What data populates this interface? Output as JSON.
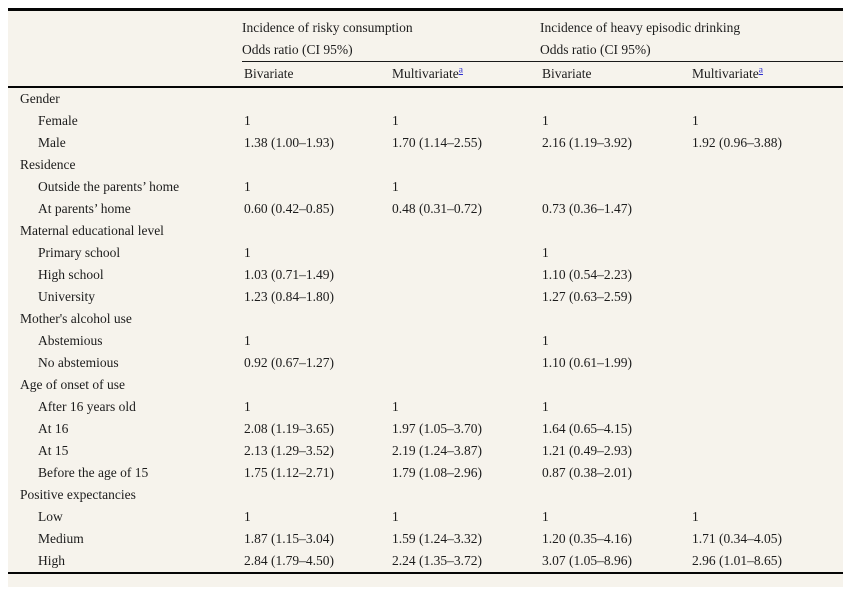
{
  "table": {
    "groups": [
      {
        "line1": "Incidence of risky consumption",
        "line2": "Odds ratio (CI 95%)"
      },
      {
        "line1": "Incidence of heavy episodic drinking",
        "line2": "Odds ratio (CI 95%)"
      }
    ],
    "sub_headers": {
      "bivariate_1": "Bivariate",
      "multivariate_1": "Multivariate",
      "bivariate_2": "Bivariate",
      "multivariate_2": "Multivariate"
    },
    "footnote_marker": "a",
    "sections": [
      {
        "label": "Gender",
        "rows": [
          {
            "label": "Female",
            "values": [
              "1",
              "1",
              "1",
              "1"
            ]
          },
          {
            "label": "Male",
            "values": [
              "1.38 (1.00–1.93)",
              "1.70 (1.14–2.55)",
              "2.16 (1.19–3.92)",
              "1.92 (0.96–3.88)"
            ]
          }
        ]
      },
      {
        "label": "Residence",
        "rows": [
          {
            "label": "Outside the parents’ home",
            "values": [
              "1",
              "1",
              "",
              ""
            ]
          },
          {
            "label": "At parents’ home",
            "values": [
              "0.60 (0.42–0.85)",
              "0.48 (0.31–0.72)",
              "0.73 (0.36–1.47)",
              ""
            ]
          }
        ]
      },
      {
        "label": "Maternal educational level",
        "rows": [
          {
            "label": "Primary school",
            "values": [
              "1",
              "",
              "1",
              ""
            ]
          },
          {
            "label": "High school",
            "values": [
              "1.03 (0.71–1.49)",
              "",
              "1.10 (0.54–2.23)",
              ""
            ]
          },
          {
            "label": "University",
            "values": [
              "1.23 (0.84–1.80)",
              "",
              "1.27 (0.63–2.59)",
              ""
            ]
          }
        ]
      },
      {
        "label": "Mother's alcohol use",
        "rows": [
          {
            "label": "Abstemious",
            "values": [
              "1",
              "",
              "1",
              ""
            ]
          },
          {
            "label": "No abstemious",
            "values": [
              "0.92 (0.67–1.27)",
              "",
              "1.10 (0.61–1.99)",
              ""
            ]
          }
        ]
      },
      {
        "label": "Age of onset of use",
        "rows": [
          {
            "label": "After 16 years old",
            "values": [
              "1",
              "1",
              "1",
              ""
            ]
          },
          {
            "label": "At 16",
            "values": [
              "2.08 (1.19–3.65)",
              "1.97 (1.05–3.70)",
              "1.64 (0.65–4.15)",
              ""
            ]
          },
          {
            "label": "At 15",
            "values": [
              "2.13 (1.29–3.52)",
              "2.19 (1.24–3.87)",
              "1.21 (0.49–2.93)",
              ""
            ]
          },
          {
            "label": "Before the age of 15",
            "values": [
              "1.75 (1.12–2.71)",
              "1.79 (1.08–2.96)",
              "0.87 (0.38–2.01)",
              ""
            ]
          }
        ]
      },
      {
        "label": "Positive expectancies",
        "rows": [
          {
            "label": "Low",
            "values": [
              "1",
              "1",
              "1",
              "1"
            ]
          },
          {
            "label": "Medium",
            "values": [
              "1.87 (1.15–3.04)",
              "1.59 (1.24–3.32)",
              "1.20 (0.35–4.16)",
              "1.71 (0.34–4.05)"
            ]
          },
          {
            "label": "High",
            "values": [
              "2.84 (1.79–4.50)",
              "2.24 (1.35–3.72)",
              "3.07 (1.05–8.96)",
              "2.96 (1.01–8.65)"
            ]
          }
        ]
      }
    ],
    "colors": {
      "background": "#f6f3ec",
      "rule": "#050505",
      "text": "#1c1c1c",
      "footnote_link": "#2b2bd0"
    }
  }
}
